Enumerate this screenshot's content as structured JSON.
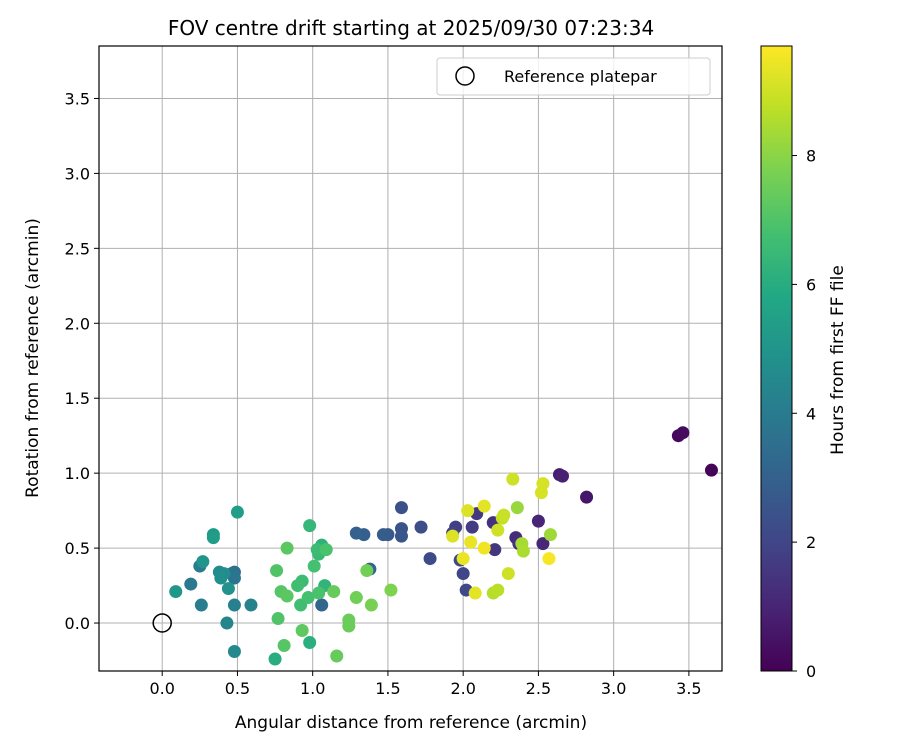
{
  "chart_data": {
    "type": "scatter",
    "title": "FOV centre drift starting at 2025/09/30 07:23:34",
    "xlabel": "Angular distance from reference (arcmin)",
    "ylabel": "Rotation from reference (arcmin)",
    "xlim": [
      -0.42,
      3.72
    ],
    "ylim": [
      -0.32,
      3.85
    ],
    "xticks": [
      0.0,
      0.5,
      1.0,
      1.5,
      2.0,
      2.5,
      3.0,
      3.5
    ],
    "yticks": [
      0.0,
      0.5,
      1.0,
      1.5,
      2.0,
      2.5,
      3.0,
      3.5
    ],
    "xtick_labels": [
      "0.0",
      "0.5",
      "1.0",
      "1.5",
      "2.0",
      "2.5",
      "3.0",
      "3.5"
    ],
    "ytick_labels": [
      "0.0",
      "0.5",
      "1.0",
      "1.5",
      "2.0",
      "2.5",
      "3.0",
      "3.5"
    ],
    "grid": true,
    "legend": {
      "position": "top-right",
      "entries": [
        "Reference platepar"
      ]
    },
    "reference_point": {
      "x": 0.0,
      "y": 0.0,
      "label": "Reference platepar"
    },
    "colorbar": {
      "label": "Hours from first FF file",
      "min": 0,
      "max": 9.7,
      "ticks": [
        0,
        2,
        4,
        6,
        8
      ],
      "tick_labels": [
        "0",
        "2",
        "4",
        "6",
        "8"
      ],
      "colormap": "viridis"
    },
    "points": [
      {
        "x": 3.65,
        "y": 1.02,
        "h": 0.1
      },
      {
        "x": 3.43,
        "y": 1.25,
        "h": 0.2
      },
      {
        "x": 3.46,
        "y": 1.27,
        "h": 0.3
      },
      {
        "x": 2.82,
        "y": 0.84,
        "h": 0.6
      },
      {
        "x": 2.64,
        "y": 0.99,
        "h": 0.8
      },
      {
        "x": 2.66,
        "y": 0.98,
        "h": 0.9
      },
      {
        "x": 2.5,
        "y": 0.68,
        "h": 1.0
      },
      {
        "x": 2.53,
        "y": 0.53,
        "h": 1.1
      },
      {
        "x": 2.35,
        "y": 0.57,
        "h": 1.2
      },
      {
        "x": 2.37,
        "y": 0.53,
        "h": 1.3
      },
      {
        "x": 2.2,
        "y": 0.67,
        "h": 1.4
      },
      {
        "x": 2.21,
        "y": 0.49,
        "h": 1.5
      },
      {
        "x": 2.09,
        "y": 0.73,
        "h": 1.6
      },
      {
        "x": 2.06,
        "y": 0.64,
        "h": 1.7
      },
      {
        "x": 1.95,
        "y": 0.64,
        "h": 1.8
      },
      {
        "x": 1.93,
        "y": 0.6,
        "h": 1.9
      },
      {
        "x": 2.0,
        "y": 0.33,
        "h": 2.0
      },
      {
        "x": 2.02,
        "y": 0.22,
        "h": 2.1
      },
      {
        "x": 1.98,
        "y": 0.42,
        "h": 2.15
      },
      {
        "x": 1.78,
        "y": 0.43,
        "h": 2.2
      },
      {
        "x": 1.72,
        "y": 0.64,
        "h": 2.3
      },
      {
        "x": 1.59,
        "y": 0.77,
        "h": 2.4
      },
      {
        "x": 1.59,
        "y": 0.63,
        "h": 2.5
      },
      {
        "x": 1.59,
        "y": 0.58,
        "h": 2.6
      },
      {
        "x": 1.5,
        "y": 0.59,
        "h": 2.7
      },
      {
        "x": 1.47,
        "y": 0.59,
        "h": 2.8
      },
      {
        "x": 1.34,
        "y": 0.59,
        "h": 2.9
      },
      {
        "x": 1.29,
        "y": 0.6,
        "h": 3.0
      },
      {
        "x": 1.38,
        "y": 0.36,
        "h": 3.1
      },
      {
        "x": 1.06,
        "y": 0.12,
        "h": 3.2
      },
      {
        "x": 0.48,
        "y": 0.34,
        "h": 3.6
      },
      {
        "x": 0.46,
        "y": 0.33,
        "h": 3.7
      },
      {
        "x": 0.48,
        "y": 0.3,
        "h": 3.8
      },
      {
        "x": 0.19,
        "y": 0.26,
        "h": 3.9
      },
      {
        "x": 0.25,
        "y": 0.38,
        "h": 4.0
      },
      {
        "x": 0.26,
        "y": 0.12,
        "h": 4.1
      },
      {
        "x": 0.48,
        "y": 0.12,
        "h": 4.2
      },
      {
        "x": 0.59,
        "y": 0.12,
        "h": 4.3
      },
      {
        "x": 0.43,
        "y": 0.0,
        "h": 4.4
      },
      {
        "x": 0.48,
        "y": -0.19,
        "h": 4.5
      },
      {
        "x": 0.38,
        "y": 0.34,
        "h": 4.6
      },
      {
        "x": 0.41,
        "y": 0.33,
        "h": 4.7
      },
      {
        "x": 0.39,
        "y": 0.3,
        "h": 4.8
      },
      {
        "x": 0.44,
        "y": 0.23,
        "h": 4.9
      },
      {
        "x": 0.27,
        "y": 0.41,
        "h": 5.0
      },
      {
        "x": 0.09,
        "y": 0.21,
        "h": 5.1
      },
      {
        "x": 0.34,
        "y": 0.59,
        "h": 5.2
      },
      {
        "x": 0.34,
        "y": 0.57,
        "h": 5.3
      },
      {
        "x": 0.5,
        "y": 0.74,
        "h": 5.4
      },
      {
        "x": 0.75,
        "y": -0.24,
        "h": 6.0
      },
      {
        "x": 0.98,
        "y": -0.13,
        "h": 6.1
      },
      {
        "x": 1.06,
        "y": 0.52,
        "h": 6.2
      },
      {
        "x": 1.08,
        "y": 0.25,
        "h": 6.3
      },
      {
        "x": 0.98,
        "y": 0.65,
        "h": 6.4
      },
      {
        "x": 1.04,
        "y": 0.46,
        "h": 6.5
      },
      {
        "x": 1.03,
        "y": 0.49,
        "h": 6.6
      },
      {
        "x": 0.93,
        "y": 0.28,
        "h": 6.6
      },
      {
        "x": 0.9,
        "y": 0.25,
        "h": 6.7
      },
      {
        "x": 0.92,
        "y": 0.12,
        "h": 6.7
      },
      {
        "x": 0.97,
        "y": 0.17,
        "h": 6.8
      },
      {
        "x": 1.01,
        "y": 0.38,
        "h": 6.8
      },
      {
        "x": 1.04,
        "y": 0.2,
        "h": 6.9
      },
      {
        "x": 1.09,
        "y": 0.49,
        "h": 6.9
      },
      {
        "x": 0.76,
        "y": 0.35,
        "h": 7.0
      },
      {
        "x": 0.77,
        "y": 0.03,
        "h": 7.0
      },
      {
        "x": 0.79,
        "y": 0.21,
        "h": 7.1
      },
      {
        "x": 0.81,
        "y": -0.15,
        "h": 7.1
      },
      {
        "x": 0.83,
        "y": 0.18,
        "h": 7.2
      },
      {
        "x": 0.83,
        "y": 0.5,
        "h": 7.2
      },
      {
        "x": 0.93,
        "y": -0.05,
        "h": 7.3
      },
      {
        "x": 1.14,
        "y": 0.21,
        "h": 7.4
      },
      {
        "x": 1.16,
        "y": -0.22,
        "h": 7.4
      },
      {
        "x": 1.24,
        "y": 0.02,
        "h": 7.5
      },
      {
        "x": 1.24,
        "y": -0.02,
        "h": 7.5
      },
      {
        "x": 1.29,
        "y": 0.17,
        "h": 7.6
      },
      {
        "x": 1.36,
        "y": 0.35,
        "h": 7.6
      },
      {
        "x": 1.39,
        "y": 0.12,
        "h": 7.7
      },
      {
        "x": 1.52,
        "y": 0.22,
        "h": 7.8
      },
      {
        "x": 2.36,
        "y": 0.77,
        "h": 8.2
      },
      {
        "x": 2.58,
        "y": 0.59,
        "h": 8.3
      },
      {
        "x": 2.39,
        "y": 0.53,
        "h": 8.4
      },
      {
        "x": 2.4,
        "y": 0.48,
        "h": 8.5
      },
      {
        "x": 2.2,
        "y": 0.2,
        "h": 8.6
      },
      {
        "x": 2.23,
        "y": 0.22,
        "h": 8.7
      },
      {
        "x": 2.26,
        "y": 0.7,
        "h": 8.8
      },
      {
        "x": 2.27,
        "y": 0.72,
        "h": 8.9
      },
      {
        "x": 2.3,
        "y": 0.33,
        "h": 9.0
      },
      {
        "x": 2.23,
        "y": 0.62,
        "h": 9.0
      },
      {
        "x": 2.33,
        "y": 0.96,
        "h": 9.0
      },
      {
        "x": 2.52,
        "y": 0.87,
        "h": 9.1
      },
      {
        "x": 2.53,
        "y": 0.93,
        "h": 9.1
      },
      {
        "x": 1.93,
        "y": 0.58,
        "h": 9.2
      },
      {
        "x": 2.03,
        "y": 0.75,
        "h": 9.2
      },
      {
        "x": 2.08,
        "y": 0.2,
        "h": 9.3
      },
      {
        "x": 2.14,
        "y": 0.78,
        "h": 9.3
      },
      {
        "x": 2.0,
        "y": 0.43,
        "h": 9.4
      },
      {
        "x": 2.05,
        "y": 0.54,
        "h": 9.4
      },
      {
        "x": 2.14,
        "y": 0.5,
        "h": 9.5
      },
      {
        "x": 2.57,
        "y": 0.43,
        "h": 9.6
      }
    ]
  }
}
